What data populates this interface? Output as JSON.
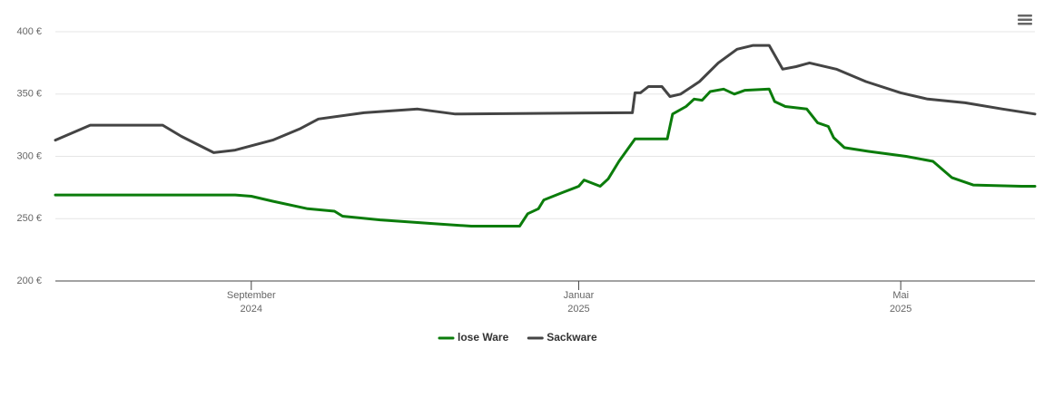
{
  "chart_data": {
    "type": "line",
    "x": [
      "2024-06-20",
      "2024-07-03",
      "2024-07-30",
      "2024-08-06",
      "2024-08-18",
      "2024-08-26",
      "2024-09-01",
      "2024-09-09",
      "2024-09-19",
      "2024-09-22",
      "2024-09-26",
      "2024-10-02",
      "2024-10-05",
      "2024-10-13",
      "2024-10-19",
      "2024-11-02",
      "2024-11-08",
      "2024-11-16",
      "2024-11-22",
      "2024-12-10",
      "2024-12-13",
      "2024-12-17",
      "2024-12-19",
      "2024-12-26",
      "2025-01-01",
      "2025-01-03",
      "2025-01-09",
      "2025-01-12",
      "2025-01-16",
      "2025-01-19",
      "2025-01-21",
      "2025-01-22",
      "2025-01-24",
      "2025-01-27",
      "2025-02-01",
      "2025-02-03",
      "2025-02-04",
      "2025-02-05",
      "2025-02-08",
      "2025-02-10",
      "2025-02-13",
      "2025-02-15",
      "2025-02-16",
      "2025-02-19",
      "2025-02-22",
      "2025-02-24",
      "2025-02-28",
      "2025-03-01",
      "2025-03-04",
      "2025-03-07",
      "2025-03-13",
      "2025-03-15",
      "2025-03-18",
      "2025-03-19",
      "2025-03-23",
      "2025-03-27",
      "2025-03-28",
      "2025-03-31",
      "2025-04-04",
      "2025-04-06",
      "2025-04-07",
      "2025-04-10",
      "2025-04-18",
      "2025-04-19",
      "2025-05-01",
      "2025-05-03",
      "2025-05-11",
      "2025-05-13",
      "2025-05-20",
      "2025-05-25",
      "2025-05-28",
      "2025-06-08",
      "2025-06-15",
      "2025-06-20"
    ],
    "series": [
      {
        "name": "lose Ware",
        "color": "#0b7c0b",
        "values": [
          269,
          null,
          null,
          null,
          null,
          269,
          268,
          264,
          null,
          258,
          null,
          256,
          252,
          null,
          249,
          null,
          246,
          null,
          244,
          244,
          254,
          258,
          265,
          271,
          276,
          281,
          276,
          282,
          296,
          null,
          null,
          314,
          null,
          null,
          null,
          314,
          null,
          334,
          null,
          340,
          346,
          null,
          345,
          352,
          null,
          354,
          350,
          null,
          353,
          null,
          354,
          344,
          null,
          340,
          null,
          338,
          null,
          327,
          324,
          315,
          null,
          307,
          null,
          304,
          null,
          300,
          null,
          296,
          283,
          null,
          277,
          null,
          276,
          276
        ]
      },
      {
        "name": "Sackware",
        "color": "#444444",
        "values": [
          313,
          325,
          325,
          316,
          303,
          305,
          null,
          313,
          322,
          null,
          330,
          null,
          null,
          335,
          null,
          338,
          null,
          334,
          null,
          null,
          null,
          null,
          null,
          null,
          null,
          null,
          null,
          null,
          null,
          335,
          335,
          351,
          351,
          356,
          356,
          null,
          348,
          null,
          350,
          null,
          null,
          360,
          null,
          null,
          375,
          null,
          null,
          386,
          null,
          389,
          389,
          null,
          370,
          null,
          372,
          null,
          375,
          null,
          null,
          null,
          370,
          null,
          360,
          null,
          351,
          null,
          346,
          null,
          null,
          343,
          null,
          338,
          null,
          334
        ]
      }
    ],
    "xlim": [
      "2024-06-20",
      "2025-06-20"
    ],
    "xticks": [
      {
        "value": "2024-09-01",
        "label": [
          "September",
          "2024"
        ]
      },
      {
        "value": "2025-01-01",
        "label": [
          "Januar",
          "2025"
        ]
      },
      {
        "value": "2025-05-01",
        "label": [
          "Mai",
          "2025"
        ]
      }
    ],
    "ylim": [
      200,
      400
    ],
    "yticks": [
      {
        "value": 200,
        "label": "200 €"
      },
      {
        "value": 250,
        "label": "250 €"
      },
      {
        "value": 300,
        "label": "300 €"
      },
      {
        "value": 350,
        "label": "350 €"
      },
      {
        "value": 400,
        "label": "400 €"
      }
    ],
    "grid": true,
    "legend": "bottom"
  }
}
